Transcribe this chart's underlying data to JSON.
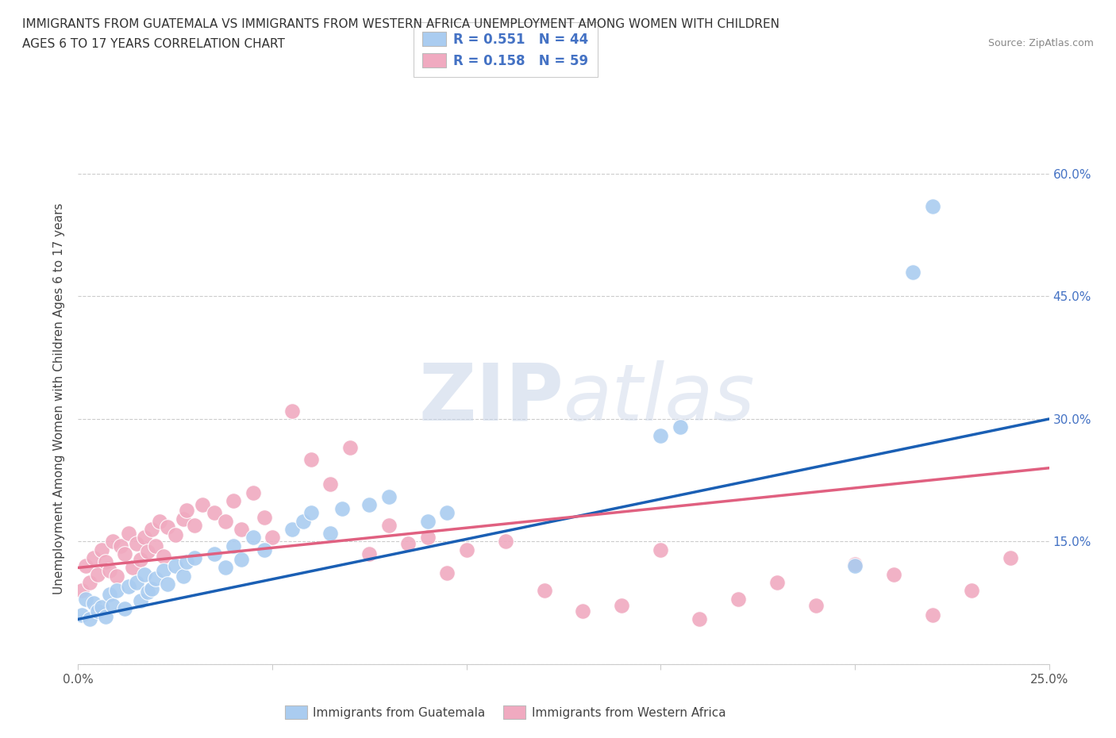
{
  "title_line1": "IMMIGRANTS FROM GUATEMALA VS IMMIGRANTS FROM WESTERN AFRICA UNEMPLOYMENT AMONG WOMEN WITH CHILDREN",
  "title_line2": "AGES 6 TO 17 YEARS CORRELATION CHART",
  "source": "Source: ZipAtlas.com",
  "ylabel": "Unemployment Among Women with Children Ages 6 to 17 years",
  "xlim": [
    0.0,
    0.25
  ],
  "ylim": [
    0.0,
    0.65
  ],
  "r_guatemala": 0.551,
  "n_guatemala": 44,
  "r_western_africa": 0.158,
  "n_western_africa": 59,
  "color_guatemala": "#aaccf0",
  "color_western_africa": "#f0aac0",
  "line_color_guatemala": "#1a5fb4",
  "line_color_western_africa": "#e06080",
  "watermark_zip": "ZIP",
  "watermark_atlas": "atlas",
  "legend_label_guatemala": "Immigrants from Guatemala",
  "legend_label_western_africa": "Immigrants from Western Africa",
  "guatemala_x": [
    0.001,
    0.002,
    0.003,
    0.004,
    0.005,
    0.006,
    0.007,
    0.008,
    0.009,
    0.01,
    0.012,
    0.013,
    0.015,
    0.016,
    0.017,
    0.018,
    0.019,
    0.02,
    0.022,
    0.023,
    0.025,
    0.027,
    0.028,
    0.03,
    0.035,
    0.038,
    0.04,
    0.042,
    0.045,
    0.048,
    0.055,
    0.058,
    0.06,
    0.065,
    0.068,
    0.075,
    0.08,
    0.09,
    0.095,
    0.15,
    0.155,
    0.2,
    0.215,
    0.22
  ],
  "guatemala_y": [
    0.06,
    0.08,
    0.055,
    0.075,
    0.065,
    0.07,
    0.058,
    0.085,
    0.072,
    0.09,
    0.068,
    0.095,
    0.1,
    0.078,
    0.11,
    0.088,
    0.092,
    0.105,
    0.115,
    0.098,
    0.12,
    0.108,
    0.125,
    0.13,
    0.135,
    0.118,
    0.145,
    0.128,
    0.155,
    0.14,
    0.165,
    0.175,
    0.185,
    0.16,
    0.19,
    0.195,
    0.205,
    0.175,
    0.185,
    0.28,
    0.29,
    0.12,
    0.48,
    0.56
  ],
  "western_africa_x": [
    0.001,
    0.002,
    0.003,
    0.004,
    0.005,
    0.006,
    0.007,
    0.008,
    0.009,
    0.01,
    0.011,
    0.012,
    0.013,
    0.014,
    0.015,
    0.016,
    0.017,
    0.018,
    0.019,
    0.02,
    0.021,
    0.022,
    0.023,
    0.025,
    0.027,
    0.028,
    0.03,
    0.032,
    0.035,
    0.038,
    0.04,
    0.042,
    0.045,
    0.048,
    0.05,
    0.055,
    0.06,
    0.065,
    0.07,
    0.075,
    0.08,
    0.085,
    0.09,
    0.095,
    0.1,
    0.11,
    0.12,
    0.13,
    0.14,
    0.15,
    0.16,
    0.17,
    0.18,
    0.19,
    0.2,
    0.21,
    0.22,
    0.23,
    0.24
  ],
  "western_africa_y": [
    0.09,
    0.12,
    0.1,
    0.13,
    0.11,
    0.14,
    0.125,
    0.115,
    0.15,
    0.108,
    0.145,
    0.135,
    0.16,
    0.118,
    0.148,
    0.128,
    0.155,
    0.138,
    0.165,
    0.145,
    0.175,
    0.132,
    0.168,
    0.158,
    0.178,
    0.188,
    0.17,
    0.195,
    0.185,
    0.175,
    0.2,
    0.165,
    0.21,
    0.18,
    0.155,
    0.31,
    0.25,
    0.22,
    0.265,
    0.135,
    0.17,
    0.148,
    0.155,
    0.112,
    0.14,
    0.15,
    0.09,
    0.065,
    0.072,
    0.14,
    0.055,
    0.08,
    0.1,
    0.072,
    0.122,
    0.11,
    0.06,
    0.09,
    0.13
  ],
  "trendline_guat_x0": 0.0,
  "trendline_guat_y0": 0.055,
  "trendline_guat_x1": 0.25,
  "trendline_guat_y1": 0.3,
  "trendline_wa_x0": 0.0,
  "trendline_wa_y0": 0.118,
  "trendline_wa_x1": 0.25,
  "trendline_wa_y1": 0.24
}
